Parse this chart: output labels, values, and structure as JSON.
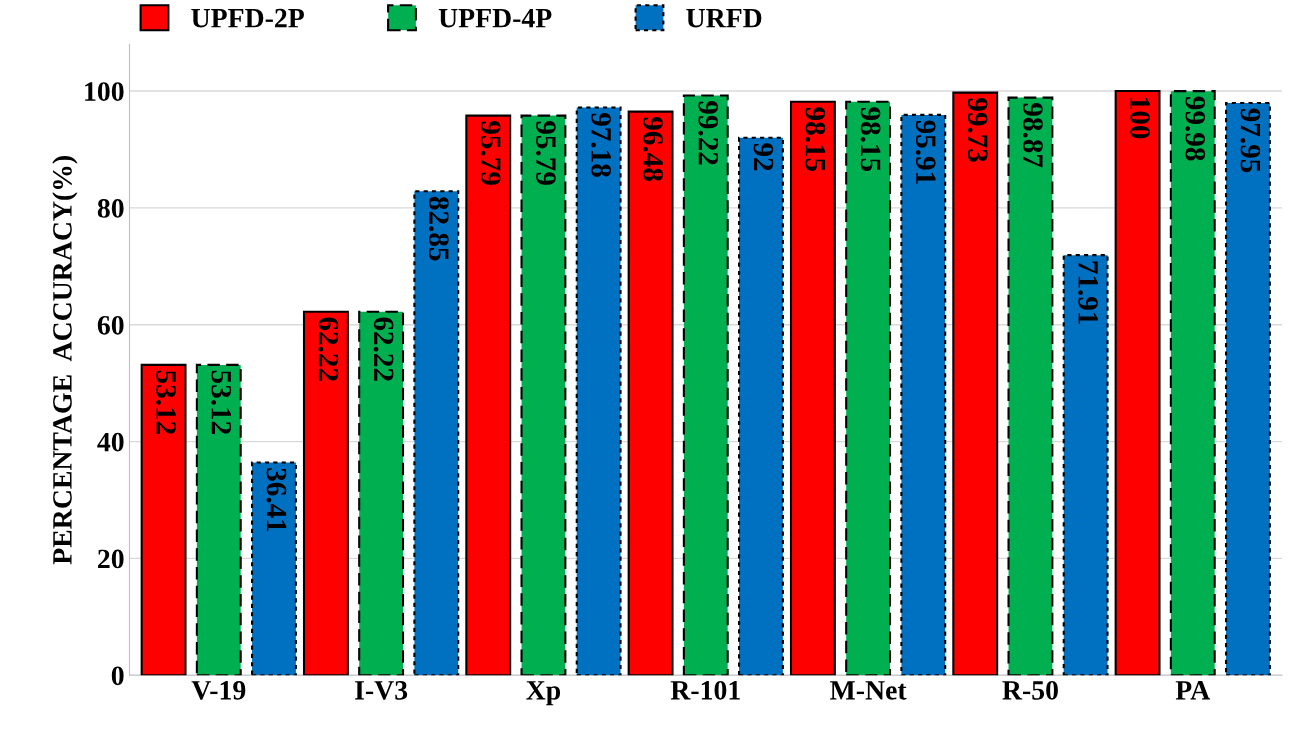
{
  "chart_data": {
    "type": "bar",
    "ylabel": "PERCENTAGE  ACCURACY(%)",
    "categories": [
      "V-19",
      "I-V3",
      "Xp",
      "R-101",
      "M-Net",
      "R-50",
      "PA"
    ],
    "series": [
      {
        "name": "UPFD-2P",
        "color": "#ff0000",
        "line_style": "solid",
        "values": [
          53.12,
          62.22,
          95.79,
          96.48,
          98.15,
          99.73,
          100
        ]
      },
      {
        "name": "UPFD-4P",
        "color": "#00b050",
        "line_style": "dashed",
        "values": [
          53.12,
          62.22,
          95.79,
          99.22,
          98.15,
          98.87,
          99.98
        ]
      },
      {
        "name": "URFD",
        "color": "#0070c0",
        "line_style": "dotted",
        "values": [
          36.41,
          82.85,
          97.18,
          92,
          95.91,
          71.91,
          97.95
        ]
      }
    ],
    "ylim": [
      0,
      108
    ],
    "yticks": [
      0,
      20,
      40,
      60,
      80,
      100
    ],
    "data_labels": true,
    "grid": "y",
    "legend": "top left"
  }
}
